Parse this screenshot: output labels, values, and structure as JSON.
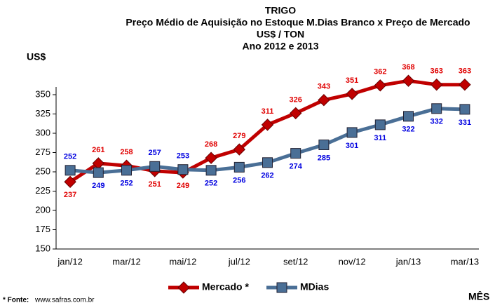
{
  "chart_data": {
    "type": "line",
    "title": "TRIGO",
    "subtitle": "Preço Médio de Aquisição no Estoque M.Dias Branco x Preço de Mercado",
    "unit_line": "US$ / TON",
    "period_line": "Ano 2012 e 2013",
    "y_label": "US$",
    "x_label": "MÊS",
    "footnote_label": "* Fonte:",
    "footnote_source": "www.safras.com.br",
    "categories": [
      "jan/12",
      null,
      "mar/12",
      null,
      "mai/12",
      null,
      "jul/12",
      null,
      "set/12",
      null,
      "nov/12",
      null,
      "jan/13",
      null,
      "mar/13"
    ],
    "series": [
      {
        "name": "Mercado *",
        "color": "#c00000",
        "marker": "diamond",
        "values": [
          237,
          261,
          258,
          251,
          249,
          268,
          279,
          311,
          326,
          343,
          351,
          362,
          368,
          363,
          363
        ]
      },
      {
        "name": "MDias",
        "color": "#4a6f96",
        "marker": "square",
        "values": [
          252,
          249,
          252,
          257,
          253,
          252,
          256,
          262,
          274,
          285,
          301,
          311,
          322,
          332,
          331
        ]
      }
    ],
    "ylim": [
      150,
      360
    ],
    "yticks": [
      150,
      175,
      200,
      225,
      250,
      275,
      300,
      325,
      350
    ],
    "legend": "bottom"
  }
}
